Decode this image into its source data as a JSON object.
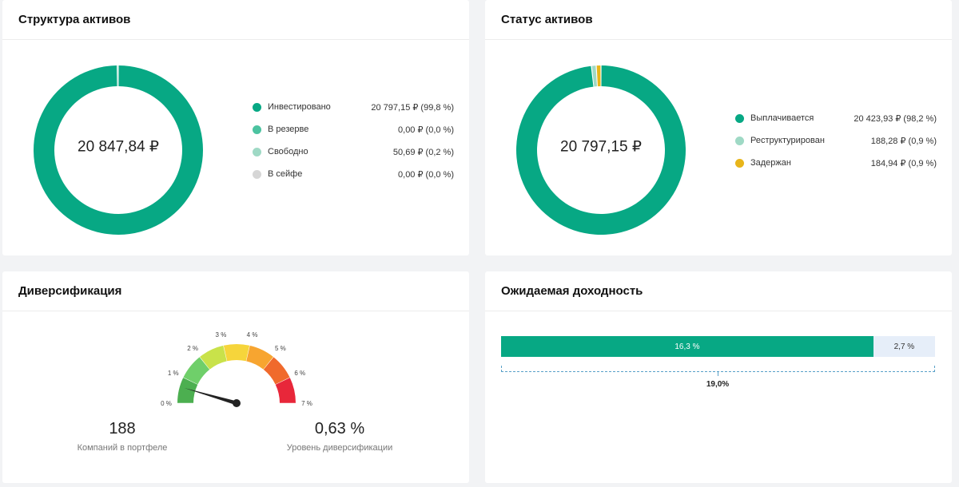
{
  "asset_structure": {
    "title": "Структура активов",
    "total": "20 847,84 ₽",
    "items": [
      {
        "label": "Инвестировано",
        "value": "20 797,15 ₽ (99,8 %)",
        "share": 99.8,
        "color": "#07a884"
      },
      {
        "label": "В резерве",
        "value": "0,00 ₽ (0,0 %)",
        "share": 0.0,
        "color": "#4cc3a0"
      },
      {
        "label": "Свободно",
        "value": "50,69 ₽ (0,2 %)",
        "share": 0.2,
        "color": "#9fd9c5"
      },
      {
        "label": "В сейфе",
        "value": "0,00 ₽ (0,0 %)",
        "share": 0.0,
        "color": "#d6d6d6"
      }
    ]
  },
  "asset_status": {
    "title": "Статус активов",
    "total": "20 797,15 ₽",
    "items": [
      {
        "label": "Выплачивается",
        "value": "20 423,93 ₽ (98,2 %)",
        "share": 98.2,
        "color": "#07a884"
      },
      {
        "label": "Реструктурирован",
        "value": "188,28 ₽ (0,9 %)",
        "share": 0.9,
        "color": "#9fd9c5"
      },
      {
        "label": "Задержан",
        "value": "184,94 ₽ (0,9 %)",
        "share": 0.9,
        "color": "#e8b51a"
      }
    ]
  },
  "diversification": {
    "title": "Диверсификация",
    "gauge_ticks": [
      "0 %",
      "1 %",
      "2 %",
      "3 %",
      "4 %",
      "5 %",
      "6 %",
      "7 %"
    ],
    "gauge_colors": [
      "#4caf50",
      "#6fcf6a",
      "#c9e24a",
      "#f6d53b",
      "#f7a530",
      "#f06a2c",
      "#e8273a"
    ],
    "gauge_value": 0.63,
    "gauge_max": 7,
    "companies_count": "188",
    "companies_label": "Компаний в портфеле",
    "level_value": "0,63 %",
    "level_label": "Уровень диверсификации"
  },
  "expected_yield": {
    "title": "Ожидаемая доходность",
    "main_label": "16,3 %",
    "main_value": 16.3,
    "rest_label": "2,7 %",
    "rest_value": 2.7,
    "total_label": "19,0%"
  }
}
